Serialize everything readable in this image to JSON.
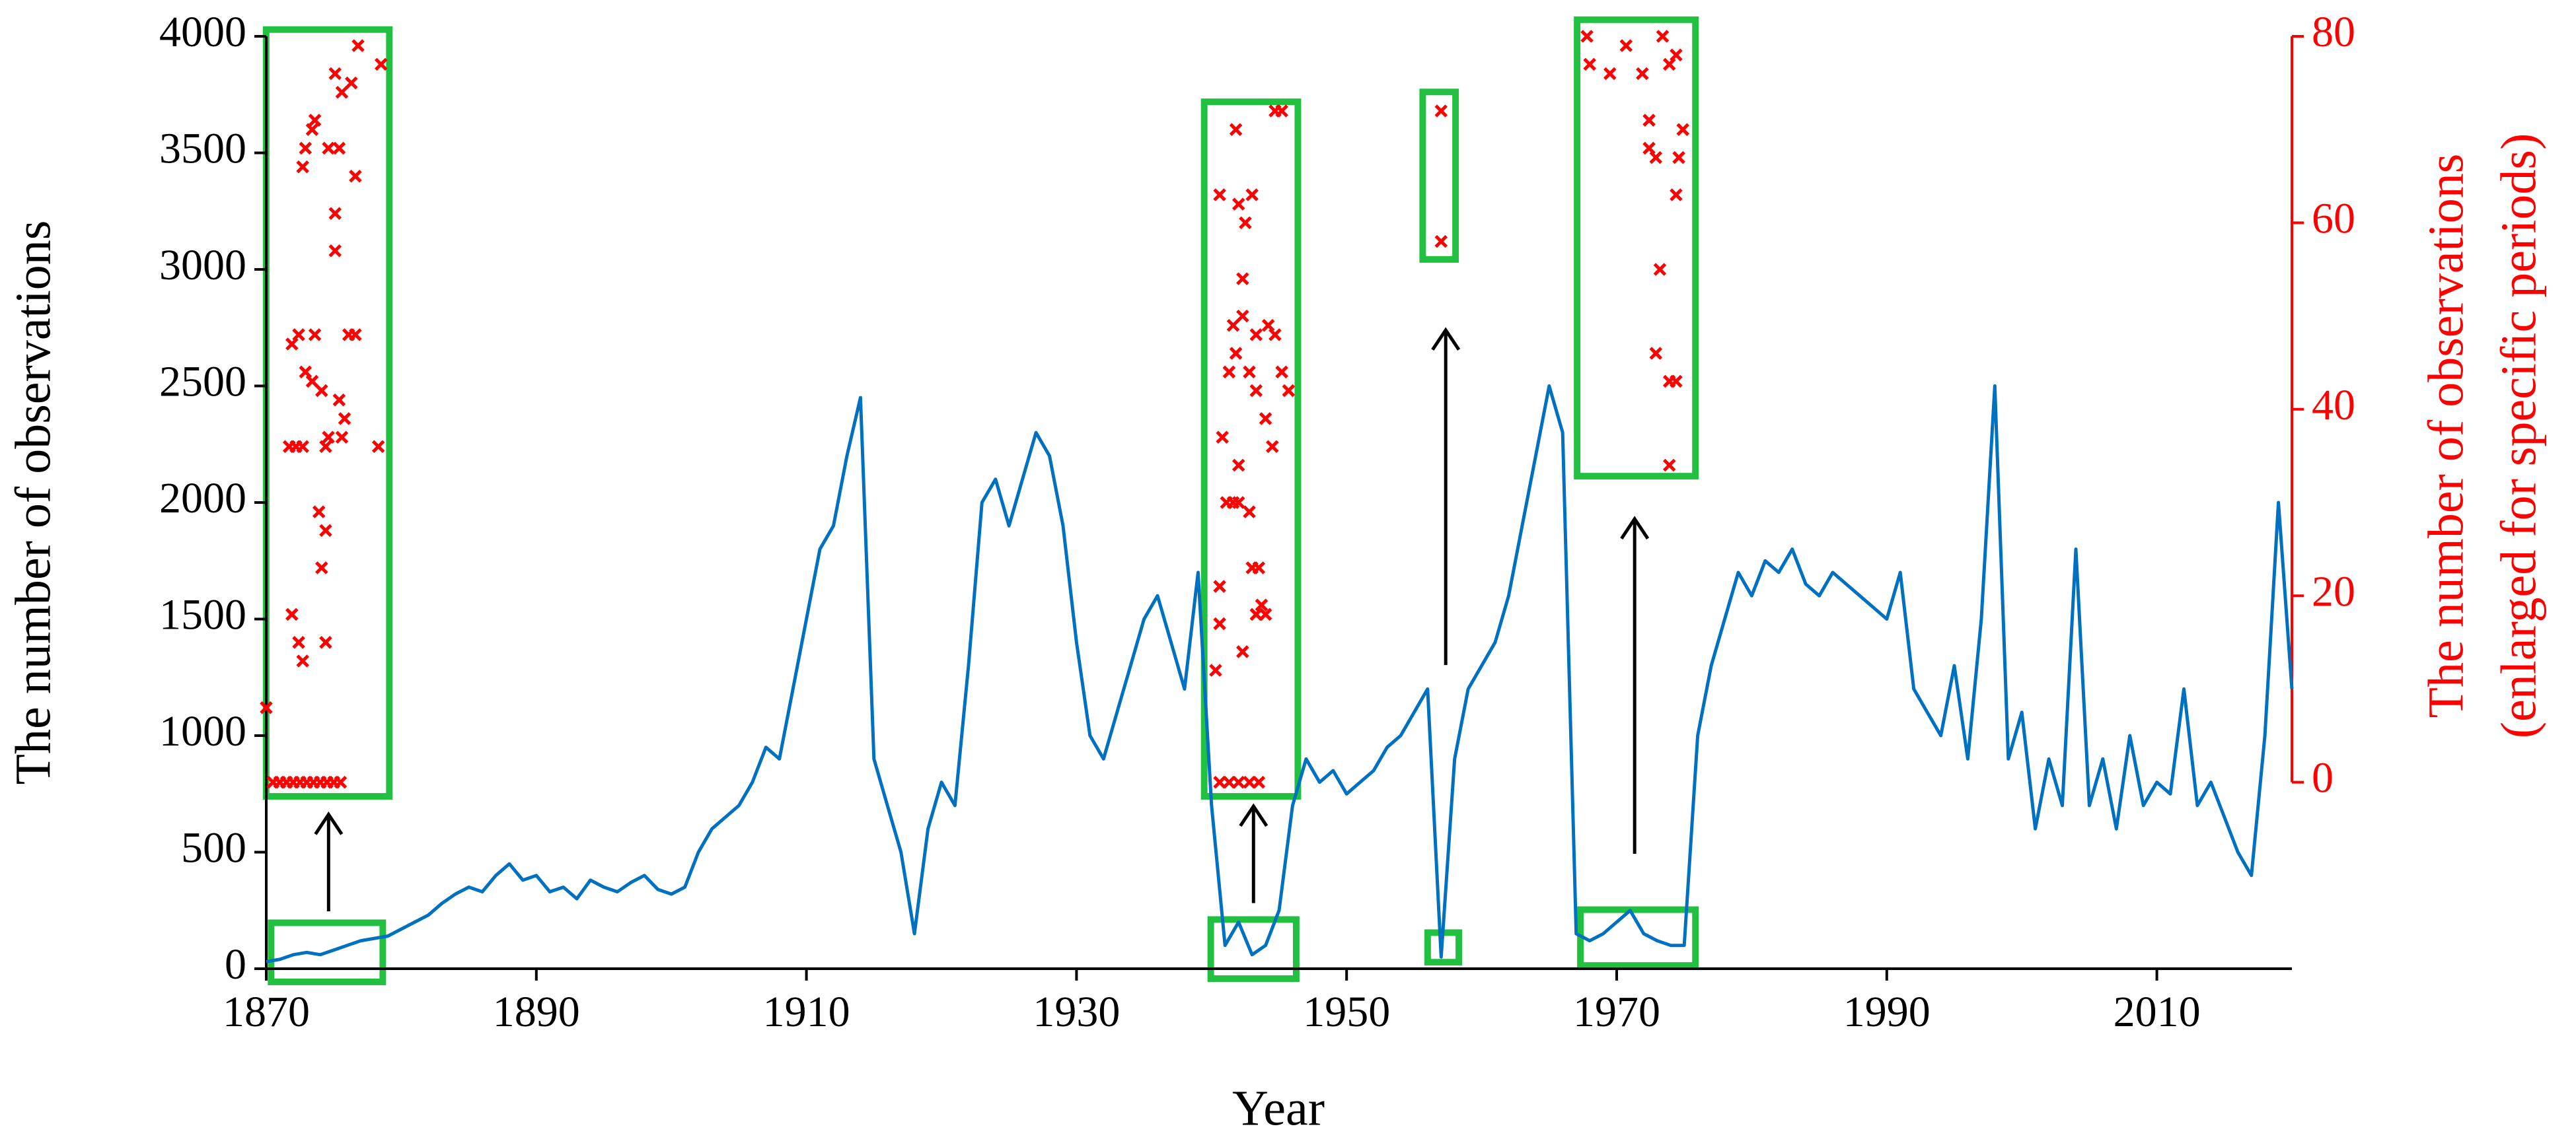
{
  "chart_data": {
    "type": "line",
    "xlabel": "Year",
    "ylabel": "The number of observations",
    "y2label": [
      "The number of observations",
      "(enlarged for specific periods)"
    ],
    "xlim": [
      1870,
      2020
    ],
    "xticks": [
      1870,
      1890,
      1910,
      1930,
      1950,
      1970,
      1990,
      2010
    ],
    "ylim": [
      0,
      4000
    ],
    "yticks": [
      0,
      500,
      1000,
      1500,
      2000,
      2500,
      3000,
      3500,
      4000
    ],
    "y2lim": [
      -20,
      80
    ],
    "y2ticks": [
      0,
      20,
      40,
      60,
      80
    ],
    "y2color": "#ff0000",
    "series": [
      {
        "type": "line",
        "color": "#0070c0",
        "x": [
          1870,
          1871,
          1872,
          1873,
          1874,
          1875,
          1876,
          1877,
          1878,
          1879,
          1880,
          1881,
          1882,
          1883,
          1884,
          1885,
          1886,
          1887,
          1888,
          1889,
          1890,
          1891,
          1892,
          1893,
          1894,
          1895,
          1896,
          1897,
          1898,
          1899,
          1900,
          1901,
          1902,
          1903,
          1904,
          1905,
          1906,
          1907,
          1908,
          1909,
          1910,
          1911,
          1912,
          1913,
          1914,
          1915,
          1916,
          1917,
          1918,
          1919,
          1920,
          1921,
          1922,
          1923,
          1924,
          1925,
          1926,
          1927,
          1928,
          1929,
          1930,
          1931,
          1932,
          1933,
          1934,
          1935,
          1936,
          1937,
          1938,
          1939,
          1940,
          1941,
          1942,
          1943,
          1944,
          1945,
          1946,
          1947,
          1948,
          1949,
          1950,
          1951,
          1952,
          1953,
          1954,
          1955,
          1956,
          1957,
          1958,
          1959,
          1960,
          1961,
          1962,
          1963,
          1964,
          1965,
          1966,
          1967,
          1968,
          1969,
          1970,
          1971,
          1972,
          1973,
          1974,
          1975,
          1976,
          1977,
          1978,
          1979,
          1980,
          1981,
          1982,
          1983,
          1984,
          1985,
          1986,
          1987,
          1988,
          1989,
          1990,
          1991,
          1992,
          1993,
          1994,
          1995,
          1996,
          1997,
          1998,
          1999,
          2000,
          2001,
          2002,
          2003,
          2004,
          2005,
          2006,
          2007,
          2008,
          2009,
          2010,
          2011,
          2012,
          2013,
          2014,
          2015,
          2016,
          2017,
          2018,
          2019,
          2020
        ],
        "values": [
          30,
          40,
          60,
          70,
          60,
          80,
          100,
          120,
          130,
          140,
          170,
          200,
          230,
          280,
          320,
          350,
          330,
          400,
          450,
          380,
          400,
          330,
          350,
          300,
          380,
          350,
          330,
          370,
          400,
          340,
          320,
          350,
          500,
          600,
          650,
          700,
          800,
          950,
          900,
          1200,
          1500,
          1800,
          1900,
          2200,
          2450,
          900,
          700,
          500,
          150,
          600,
          800,
          700,
          1300,
          2000,
          2100,
          1900,
          2100,
          2300,
          2200,
          1900,
          1400,
          1000,
          900,
          1100,
          1300,
          1500,
          1600,
          1400,
          1200,
          1700,
          700,
          100,
          200,
          60,
          100,
          250,
          700,
          900,
          800,
          850,
          750,
          800,
          850,
          950,
          1000,
          1100,
          1200,
          50,
          900,
          1200,
          1300,
          1400,
          1600,
          1900,
          2200,
          2500,
          2300,
          150,
          120,
          150,
          200,
          250,
          150,
          120,
          100,
          100,
          1000,
          1300,
          1500,
          1700,
          1600,
          1750,
          1700,
          1800,
          1650,
          1600,
          1700,
          1650,
          1600,
          1550,
          1500,
          1700,
          1200,
          1100,
          1000,
          1300,
          900,
          1500,
          2500,
          900,
          1100,
          600,
          900,
          700,
          1800,
          700,
          900,
          600,
          1000,
          700,
          800,
          750,
          1200,
          700,
          800,
          650,
          500,
          400,
          1000,
          2000,
          1200
        ]
      },
      {
        "type": "scatter",
        "axis": "y2",
        "color": "#ff0000",
        "x": [
          1870.0,
          1870.5,
          1871.0,
          1871.5,
          1872.0,
          1872.5,
          1873.0,
          1873.5,
          1874.0,
          1874.5,
          1875.0,
          1875.5,
          1871.9,
          1872.4,
          1872.7,
          1871.7,
          1872.2,
          1872.7,
          1871.9,
          1872.4,
          1873.6,
          1872.9,
          1873.4,
          1874.1,
          1874.4,
          1874.6,
          1875.4,
          1875.6,
          1875.8,
          1873.9,
          1874.4,
          1874.1,
          1874.4,
          1872.7,
          1872.9,
          1873.4,
          1873.6,
          1874.6,
          1875.4,
          1875.1,
          1875.6,
          1876.3,
          1876.6,
          1876.8,
          1875.1,
          1875.1,
          1876.1,
          1876.6,
          1878.3,
          1878.5,
          1940.6,
          1941.3,
          1942.0,
          1942.8,
          1943.5,
          1940.3,
          1940.6,
          1940.6,
          1940.8,
          1940.6,
          1941.8,
          1942.0,
          1942.5,
          1943.0,
          1942.3,
          1941.6,
          1941.8,
          1941.3,
          1942.3,
          1942.8,
          1943.3,
          1941.1,
          1941.6,
          1942.0,
          1942.8,
          1942.0,
          1942.3,
          1943.0,
          1943.3,
          1943.5,
          1944.0,
          1943.7,
          1943.3,
          1944.0,
          1944.2,
          1944.7,
          1944.5,
          1945.2,
          1945.7,
          1944.7,
          1945.2,
          1957.0,
          1957.0,
          1967.8,
          1968.0,
          1969.5,
          1970.7,
          1971.9,
          1972.4,
          1972.4,
          1972.9,
          1973.4,
          1973.9,
          1974.4,
          1974.9,
          1974.6,
          1974.4,
          1973.2,
          1972.9,
          1973.9,
          1974.4,
          1973.9
        ],
        "values": [
          8,
          0,
          0,
          0,
          0,
          0,
          0,
          0,
          0,
          0,
          0,
          0,
          18,
          15,
          13,
          36,
          36,
          36,
          47,
          48,
          48,
          44,
          43,
          42,
          36,
          37,
          41,
          37,
          39,
          29,
          27,
          23,
          15,
          66,
          68,
          70,
          71,
          68,
          68,
          76,
          74,
          75,
          65,
          79,
          61,
          57,
          48,
          48,
          36,
          77,
          0,
          0,
          0,
          0,
          0,
          12,
          17,
          21,
          37,
          63,
          70,
          62,
          60,
          63,
          54,
          49,
          46,
          44,
          50,
          44,
          48,
          30,
          30,
          30,
          29,
          34,
          14,
          23,
          18,
          23,
          18,
          19,
          42,
          39,
          49,
          48,
          36,
          44,
          42,
          72,
          72,
          72,
          58,
          80,
          77,
          76,
          79,
          76,
          71,
          68,
          67,
          80,
          77,
          78,
          70,
          67,
          63,
          55,
          46,
          43,
          43,
          34
        ]
      }
    ]
  }
}
